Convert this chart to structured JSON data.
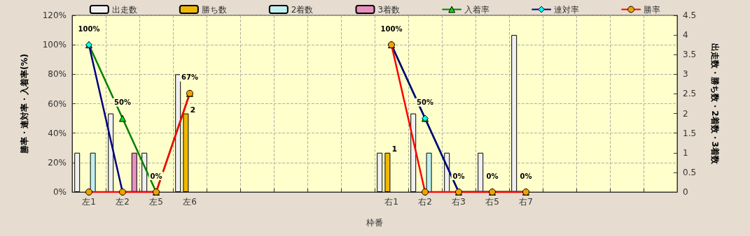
{
  "chart_data": {
    "type": "bar",
    "xlabel": "枠番",
    "ylabel": "勝率・連対率・入着率(%)",
    "y2label": "出走数・勝ち数・2着数・3着数",
    "categories": [
      "左1",
      "左2",
      "左5",
      "左6",
      null,
      null,
      null,
      null,
      null,
      "右1",
      "右2",
      "右3",
      "右5",
      "右7",
      null,
      null,
      null,
      null
    ],
    "series": [
      {
        "name": "出走数",
        "axis": "y2",
        "color": "#f0f0f0",
        "values": [
          1,
          2,
          1,
          3,
          null,
          null,
          null,
          null,
          null,
          1,
          2,
          1,
          1,
          4,
          null,
          null,
          null,
          null
        ]
      },
      {
        "name": "勝ち数",
        "axis": "y2",
        "color": "#f0b800",
        "values": [
          0,
          0,
          0,
          2,
          null,
          null,
          null,
          null,
          null,
          1,
          0,
          0,
          0,
          0,
          null,
          null,
          null,
          null
        ],
        "value_labels": [
          null,
          null,
          null,
          "2",
          null,
          null,
          null,
          null,
          null,
          "1",
          null,
          null,
          null,
          null,
          null,
          null,
          null,
          null
        ]
      },
      {
        "name": "2着数",
        "axis": "y2",
        "color": "#c0f0f0",
        "values": [
          1,
          0,
          0,
          0,
          null,
          null,
          null,
          null,
          null,
          0,
          1,
          0,
          0,
          0,
          null,
          null,
          null,
          null
        ]
      },
      {
        "name": "3着数",
        "axis": "y2",
        "color": "#e890c0",
        "values": [
          0,
          1,
          0,
          0,
          null,
          null,
          null,
          null,
          null,
          0,
          0,
          0,
          0,
          0,
          null,
          null,
          null,
          null
        ]
      },
      {
        "name": "入着率",
        "type": "line",
        "color": "#008000",
        "marker": "triangle",
        "values": [
          100,
          50,
          0,
          67,
          null,
          null,
          null,
          null,
          null,
          100,
          50,
          0,
          0,
          0,
          null,
          null,
          null,
          null
        ],
        "value_labels": [
          "100%",
          "50%",
          "0%",
          "67%",
          null,
          null,
          null,
          null,
          null,
          "100%",
          "50%",
          "0%",
          "0%",
          "0%",
          null,
          null,
          null,
          null
        ]
      },
      {
        "name": "連対率",
        "type": "line",
        "color": "#000080",
        "marker": "diamond",
        "values": [
          100,
          0,
          0,
          null,
          null,
          null,
          null,
          null,
          null,
          100,
          50,
          0,
          0,
          0,
          null,
          null,
          null,
          null
        ]
      },
      {
        "name": "勝率",
        "type": "line",
        "color": "#ff0000",
        "marker": "circle",
        "values": [
          0,
          0,
          0,
          67,
          null,
          null,
          null,
          null,
          null,
          100,
          0,
          0,
          0,
          0,
          null,
          null,
          null,
          null
        ]
      }
    ],
    "ylim": [
      0,
      120
    ],
    "yticks": [
      {
        "value": 0,
        "label": "0%"
      },
      {
        "value": 20,
        "label": "20%"
      },
      {
        "value": 40,
        "label": "40%"
      },
      {
        "value": 60,
        "label": "60%"
      },
      {
        "value": 80,
        "label": "80%"
      },
      {
        "value": 100,
        "label": "100%"
      },
      {
        "value": 120,
        "label": "120%"
      }
    ],
    "y2lim": [
      0,
      4.5
    ],
    "y2ticks": [
      0,
      0.5,
      1,
      1.5,
      2,
      2.5,
      3,
      3.5,
      4,
      4.5
    ],
    "grid": true,
    "legend": "top"
  }
}
